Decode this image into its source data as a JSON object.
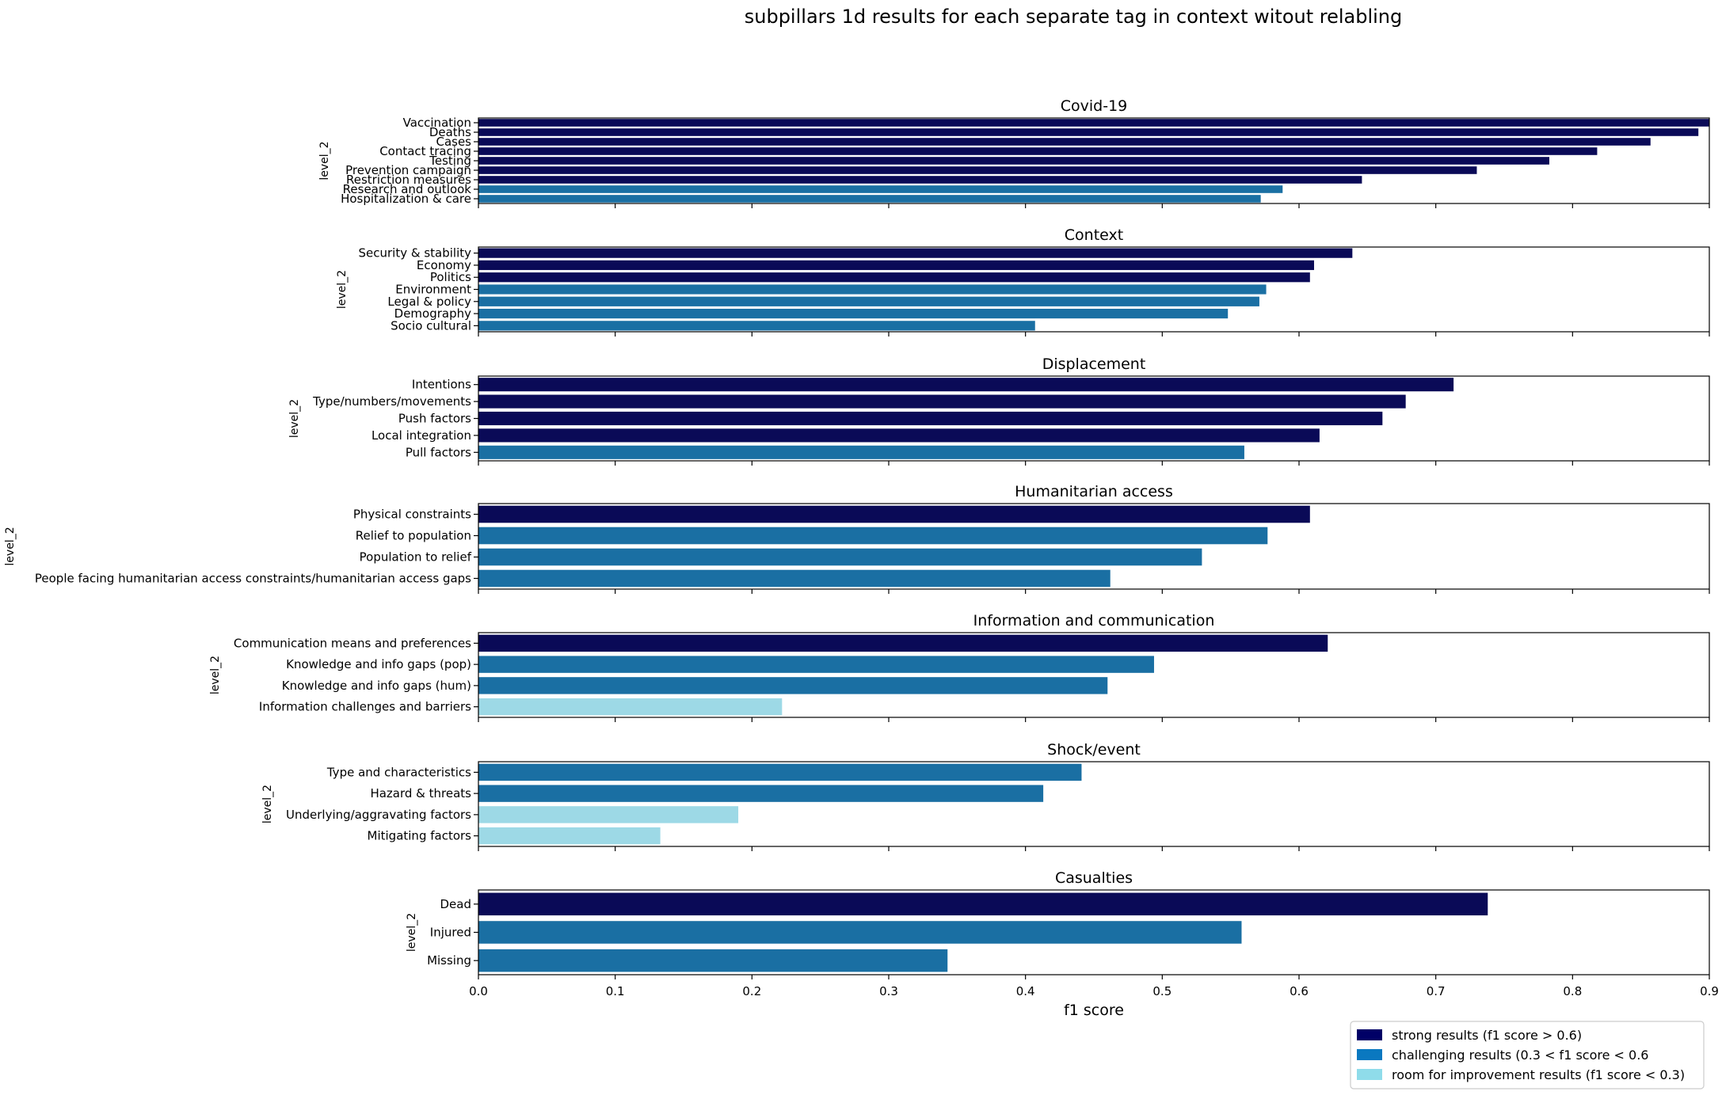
{
  "title": "subpillars 1d results for each separate tag in context witout relabling",
  "colors": {
    "strong": "#0a0a57",
    "challenging": "#1a6fa3",
    "improve": "#9dd9e6",
    "legend_strong": "#000066",
    "legend_challenging": "#0a78c0",
    "legend_improve": "#8fdcea"
  },
  "chart_data": {
    "type": "bar",
    "orientation": "horizontal",
    "xlabel": "f1 score",
    "xlim": [
      0.0,
      0.9
    ],
    "xticks": [
      "0.0",
      "0.1",
      "0.2",
      "0.3",
      "0.4",
      "0.5",
      "0.6",
      "0.7",
      "0.8",
      "0.9"
    ],
    "grid": false,
    "legend_position": "bottom-right",
    "legend": [
      {
        "label": "strong results (f1 score > 0.6)",
        "color_key": "legend_strong"
      },
      {
        "label": "challenging results (0.3 < f1 score < 0.6",
        "color_key": "legend_challenging"
      },
      {
        "label": "room for improvement results (f1 score < 0.3)",
        "color_key": "legend_improve"
      }
    ],
    "panels": [
      {
        "title": "Covid-19",
        "ylabel": "level_2",
        "categories": [
          "Vaccination",
          "Deaths",
          "Cases",
          "Contact tracing",
          "Testing",
          "Prevention campaign",
          "Restriction measures",
          "Research and outlook",
          "Hospitalization & care"
        ],
        "values": [
          0.9,
          0.892,
          0.857,
          0.818,
          0.783,
          0.73,
          0.646,
          0.588,
          0.572
        ]
      },
      {
        "title": "Context",
        "ylabel": "level_2",
        "categories": [
          "Security & stability",
          "Economy",
          "Politics",
          "Environment",
          "Legal & policy",
          "Demography",
          "Socio cultural"
        ],
        "values": [
          0.639,
          0.611,
          0.608,
          0.576,
          0.571,
          0.548,
          0.407
        ]
      },
      {
        "title": "Displacement",
        "ylabel": "level_2",
        "categories": [
          "Intentions",
          "Type/numbers/movements",
          "Push factors",
          "Local integration",
          "Pull factors"
        ],
        "values": [
          0.713,
          0.678,
          0.661,
          0.615,
          0.56
        ]
      },
      {
        "title": "Humanitarian access",
        "ylabel": "level_2",
        "categories": [
          "Physical constraints",
          "Relief to population",
          "Population to relief",
          "People facing humanitarian access constraints/humanitarian access gaps"
        ],
        "values": [
          0.608,
          0.577,
          0.529,
          0.462
        ]
      },
      {
        "title": "Information and communication",
        "ylabel": "level_2",
        "categories": [
          "Communication means and preferences",
          "Knowledge and info gaps (pop)",
          "Knowledge and info gaps (hum)",
          "Information challenges and barriers"
        ],
        "values": [
          0.621,
          0.494,
          0.46,
          0.222
        ]
      },
      {
        "title": "Shock/event",
        "ylabel": "level_2",
        "categories": [
          "Type and characteristics",
          "Hazard & threats",
          "Underlying/aggravating factors",
          "Mitigating factors"
        ],
        "values": [
          0.441,
          0.413,
          0.19,
          0.133
        ]
      },
      {
        "title": "Casualties",
        "ylabel": "level_2",
        "categories": [
          "Dead",
          "Injured",
          "Missing"
        ],
        "values": [
          0.738,
          0.558,
          0.343
        ]
      }
    ]
  }
}
